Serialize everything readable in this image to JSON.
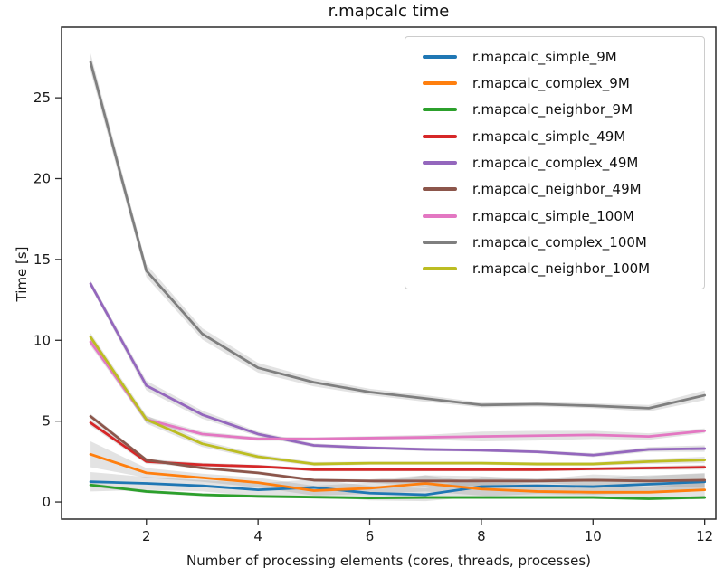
{
  "figure": {
    "title": "r.mapcalc time",
    "xlabel": "Number of processing elements (cores, threads, processes)",
    "ylabel": "Time [s]"
  },
  "chart_data": {
    "type": "line",
    "title": "r.mapcalc time",
    "xlabel": "Number of processing elements (cores, threads, processes)",
    "ylabel": "Time [s]",
    "x": [
      1,
      2,
      3,
      4,
      5,
      6,
      7,
      8,
      9,
      10,
      11,
      12
    ],
    "xticks": [
      2,
      4,
      6,
      8,
      10,
      12
    ],
    "yticks": [
      0,
      5,
      10,
      15,
      20,
      25
    ],
    "xlim": [
      0.48,
      12.2
    ],
    "ylim": [
      -1.06,
      29.37
    ],
    "grid": false,
    "legend_position": "upper right",
    "error_band": {
      "color": "#7f7f7f",
      "opacity": 0.22
    },
    "series": [
      {
        "name": "r.mapcalc_simple_9M",
        "color": "#1f77b4",
        "values": [
          1.25,
          1.15,
          1.0,
          0.75,
          0.9,
          0.55,
          0.45,
          0.95,
          1.0,
          0.95,
          1.1,
          1.25
        ],
        "band_halfwidth": [
          0.6,
          0.4,
          0.35,
          0.4,
          0.5,
          0.45,
          0.4,
          0.6,
          0.5,
          0.5,
          0.55,
          0.5
        ]
      },
      {
        "name": "r.mapcalc_complex_9M",
        "color": "#ff7f0e",
        "values": [
          2.95,
          1.8,
          1.5,
          1.2,
          0.7,
          0.85,
          1.15,
          0.8,
          0.65,
          0.6,
          0.6,
          0.75
        ],
        "band_halfwidth": [
          0.8,
          0.3,
          0.25,
          0.3,
          0.3,
          0.35,
          0.5,
          0.4,
          0.45,
          0.4,
          0.35,
          0.45
        ]
      },
      {
        "name": "r.mapcalc_neighbor_9M",
        "color": "#2ca02c",
        "values": [
          1.05,
          0.65,
          0.45,
          0.35,
          0.3,
          0.25,
          0.28,
          0.28,
          0.28,
          0.28,
          0.2,
          0.28
        ],
        "band_halfwidth": [
          0.12,
          0.1,
          0.1,
          0.1,
          0.08,
          0.08,
          0.08,
          0.08,
          0.08,
          0.08,
          0.08,
          0.1
        ]
      },
      {
        "name": "r.mapcalc_simple_49M",
        "color": "#d62728",
        "values": [
          4.9,
          2.5,
          2.3,
          2.2,
          2.0,
          2.0,
          2.0,
          2.0,
          2.0,
          2.05,
          2.1,
          2.15
        ],
        "band_halfwidth": [
          0.2,
          0.15,
          0.12,
          0.1,
          0.1,
          0.1,
          0.1,
          0.1,
          0.1,
          0.1,
          0.12,
          0.15
        ]
      },
      {
        "name": "r.mapcalc_complex_49M",
        "color": "#9467bd",
        "values": [
          13.5,
          7.2,
          5.4,
          4.2,
          3.5,
          3.35,
          3.25,
          3.2,
          3.1,
          2.9,
          3.25,
          3.3
        ],
        "band_halfwidth": [
          0.2,
          0.3,
          0.25,
          0.15,
          0.12,
          0.1,
          0.1,
          0.1,
          0.1,
          0.12,
          0.15,
          0.2
        ]
      },
      {
        "name": "r.mapcalc_neighbor_49M",
        "color": "#8c564b",
        "values": [
          5.3,
          2.6,
          2.1,
          1.8,
          1.35,
          1.3,
          1.3,
          1.3,
          1.3,
          1.35,
          1.3,
          1.35
        ],
        "band_halfwidth": [
          0.15,
          0.12,
          0.1,
          0.1,
          0.1,
          0.1,
          0.35,
          0.3,
          0.1,
          0.35,
          0.3,
          0.45
        ]
      },
      {
        "name": "r.mapcalc_simple_100M",
        "color": "#e377c2",
        "values": [
          9.9,
          5.1,
          4.2,
          3.9,
          3.9,
          3.95,
          4.0,
          4.05,
          4.1,
          4.15,
          4.05,
          4.4
        ],
        "band_halfwidth": [
          0.25,
          0.2,
          0.15,
          0.12,
          0.1,
          0.12,
          0.15,
          0.3,
          0.3,
          0.25,
          0.2,
          0.15
        ]
      },
      {
        "name": "r.mapcalc_complex_100M",
        "color": "#7f7f7f",
        "values": [
          27.2,
          14.3,
          10.4,
          8.3,
          7.4,
          6.8,
          6.4,
          6.0,
          6.05,
          5.95,
          5.8,
          6.6
        ],
        "band_halfwidth": [
          0.55,
          0.4,
          0.35,
          0.3,
          0.25,
          0.2,
          0.2,
          0.15,
          0.15,
          0.15,
          0.2,
          0.3
        ]
      },
      {
        "name": "r.mapcalc_neighbor_100M",
        "color": "#bcbd22",
        "values": [
          10.2,
          5.1,
          3.6,
          2.8,
          2.35,
          2.4,
          2.4,
          2.4,
          2.35,
          2.35,
          2.5,
          2.6
        ],
        "band_halfwidth": [
          0.25,
          0.25,
          0.2,
          0.15,
          0.12,
          0.1,
          0.1,
          0.1,
          0.1,
          0.1,
          0.15,
          0.2
        ]
      }
    ],
    "style": {
      "line_width": 2.8,
      "spine_color": "#2b2b2b",
      "tick_color": "#1a1a1a",
      "background": "#ffffff"
    }
  }
}
